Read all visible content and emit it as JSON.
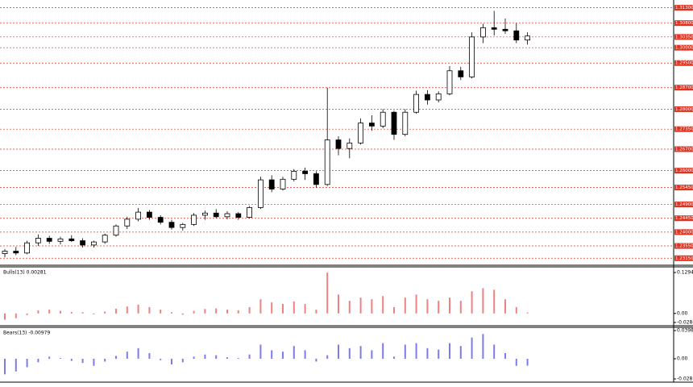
{
  "chart_data": [
    {
      "type": "candlestick",
      "open": [
        1.233,
        1.2338,
        1.2332,
        1.2365,
        1.238,
        1.237,
        1.2378,
        1.2372,
        1.2358,
        1.2368,
        1.239,
        1.242,
        1.2442,
        1.2465,
        1.2448,
        1.2432,
        1.2415,
        1.2425,
        1.2455,
        1.2462,
        1.245,
        1.246,
        1.2448,
        1.248,
        1.257,
        1.254,
        1.2572,
        1.2598,
        1.259,
        1.2555,
        1.27,
        1.2672,
        1.269,
        1.2755,
        1.2745,
        1.279,
        1.2718,
        1.279,
        1.2848,
        1.283,
        1.285,
        1.2925,
        1.2905,
        1.3035,
        1.3065,
        1.306,
        1.3055,
        1.3025
      ],
      "high": [
        1.2345,
        1.2352,
        1.2372,
        1.2392,
        1.2388,
        1.2385,
        1.239,
        1.238,
        1.2372,
        1.2395,
        1.2425,
        1.245,
        1.2478,
        1.2472,
        1.2455,
        1.244,
        1.243,
        1.2462,
        1.247,
        1.2475,
        1.2468,
        1.2465,
        1.2485,
        1.258,
        1.2585,
        1.258,
        1.2605,
        1.261,
        1.2598,
        1.287,
        1.2712,
        1.2705,
        1.277,
        1.278,
        1.28,
        1.2795,
        1.28,
        1.286,
        1.2862,
        1.2858,
        1.294,
        1.2938,
        1.305,
        1.3078,
        1.312,
        1.3095,
        1.308,
        1.305
      ],
      "low": [
        1.2318,
        1.2325,
        1.2328,
        1.2355,
        1.2362,
        1.236,
        1.2368,
        1.235,
        1.235,
        1.2362,
        1.2385,
        1.241,
        1.2435,
        1.244,
        1.2425,
        1.2408,
        1.2405,
        1.242,
        1.244,
        1.2445,
        1.2442,
        1.244,
        1.2445,
        1.2475,
        1.253,
        1.2535,
        1.2565,
        1.257,
        1.2545,
        1.255,
        1.265,
        1.264,
        1.2685,
        1.273,
        1.2738,
        1.27,
        1.2712,
        1.2785,
        1.2815,
        1.2822,
        1.2845,
        1.2895,
        1.29,
        1.3015,
        1.304,
        1.3045,
        1.3015,
        1.301
      ],
      "close": [
        1.2338,
        1.2332,
        1.2365,
        1.238,
        1.237,
        1.2378,
        1.2372,
        1.2358,
        1.2368,
        1.239,
        1.242,
        1.2442,
        1.2465,
        1.2448,
        1.2432,
        1.2415,
        1.2425,
        1.2455,
        1.2462,
        1.245,
        1.246,
        1.2448,
        1.248,
        1.257,
        1.254,
        1.2572,
        1.2598,
        1.259,
        1.2555,
        1.27,
        1.2672,
        1.269,
        1.2755,
        1.2745,
        1.279,
        1.2718,
        1.279,
        1.2848,
        1.283,
        1.285,
        1.2925,
        1.2905,
        1.3035,
        1.3065,
        1.306,
        1.3055,
        1.3025,
        1.3038
      ],
      "ylim": [
        1.23,
        1.315
      ],
      "yticks": [
        {
          "value": 1.313,
          "label": "1.31300"
        },
        {
          "value": 1.308,
          "label": "1.30800"
        },
        {
          "value": 1.3035,
          "label": "1.30350"
        },
        {
          "value": 1.3,
          "label": "1.30000"
        },
        {
          "value": 1.295,
          "label": "1.29500"
        },
        {
          "value": 1.287,
          "label": "1.28700"
        },
        {
          "value": 1.28,
          "label": "1.28000"
        },
        {
          "value": 1.2735,
          "label": "1.27350"
        },
        {
          "value": 1.267,
          "label": "1.26700"
        },
        {
          "value": 1.26,
          "label": "1.26000"
        },
        {
          "value": 1.2545,
          "label": "1.25450"
        },
        {
          "value": 1.249,
          "label": "1.24900"
        },
        {
          "value": 1.2445,
          "label": "1.24450"
        },
        {
          "value": 1.24,
          "label": "1.24000"
        },
        {
          "value": 1.2355,
          "label": "1.23550"
        },
        {
          "value": 1.2315,
          "label": "1.23150"
        }
      ],
      "color": "#000000",
      "level_color": "#e0301e"
    },
    {
      "type": "histogram",
      "title": "Bulls(13) 0.00281",
      "color": "#f08080",
      "values": [
        -0.02,
        -0.015,
        -0.005,
        0.01,
        0.012,
        0.008,
        0.005,
        0.004,
        -0.003,
        0.006,
        0.015,
        0.022,
        0.028,
        0.02,
        0.012,
        0.004,
        -0.004,
        0.008,
        0.014,
        0.016,
        0.012,
        0.01,
        0.02,
        0.045,
        0.035,
        0.03,
        0.038,
        0.03,
        0.012,
        0.129,
        0.06,
        0.04,
        0.05,
        0.045,
        0.055,
        0.02,
        0.05,
        0.06,
        0.045,
        0.04,
        0.05,
        0.04,
        0.07,
        0.08,
        0.075,
        0.045,
        0.02,
        0.00281
      ],
      "ylim": [
        -0.0286,
        0.12949
      ],
      "yticks": [
        {
          "value": 0.12949,
          "label": "0.12949"
        },
        {
          "value": 0,
          "label": "0.00"
        },
        {
          "value": -0.0286,
          "label": "-0.0286"
        }
      ]
    },
    {
      "type": "histogram",
      "title": "Bears(13) -0.00979",
      "color": "#7b7bef",
      "values": [
        -0.022,
        -0.018,
        -0.012,
        -0.005,
        0.003,
        0.001,
        -0.003,
        -0.006,
        -0.01,
        -0.004,
        0.004,
        0.01,
        0.015,
        0.008,
        -0.002,
        -0.008,
        -0.005,
        0.003,
        0.006,
        0.005,
        0.002,
        0.001,
        0.006,
        0.02,
        0.012,
        0.01,
        0.018,
        0.012,
        -0.004,
        0.005,
        0.02,
        0.015,
        0.018,
        0.012,
        0.022,
        0.003,
        0.02,
        0.022,
        0.015,
        0.013,
        0.022,
        0.018,
        0.03,
        0.035,
        0.02,
        0.008,
        -0.01,
        -0.00979
      ],
      "ylim": [
        -0.0285,
        0.03981
      ],
      "yticks": [
        {
          "value": 0.03981,
          "label": "0.03981"
        },
        {
          "value": 0,
          "label": "0.00"
        },
        {
          "value": -0.0285,
          "label": "-0.02850"
        }
      ]
    }
  ]
}
